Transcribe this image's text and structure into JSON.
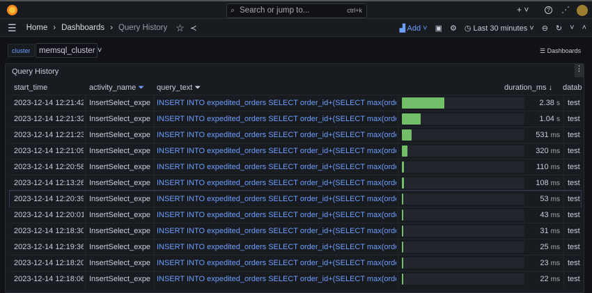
{
  "topbar": {
    "search_placeholder": "Search or jump to...",
    "shortcut": "ctrl+k",
    "plus": "+ ˅",
    "help": "?",
    "news": "⚞"
  },
  "breadcrumb": [
    "Home",
    "Dashboards",
    "Query History"
  ],
  "toolbar": {
    "add": "Add",
    "time_range": "Last 30 minutes"
  },
  "variables": {
    "label": "cluster",
    "value": "memsql_cluster"
  },
  "dashboards_link": "Dashboards",
  "panel": {
    "title": "Query History",
    "columns": [
      "start_time",
      "activity_name",
      "query_text",
      "duration_ms",
      "datab"
    ],
    "duration_max_ms": 6870,
    "rows": [
      {
        "start_time": "2023-12-14 12:21:42",
        "activity_name": "InsertSelect_expe...",
        "query_text": "INSERT INTO expedited_orders SELECT order_id+(SELECT max(order_id) FR...",
        "duration_ms": 2380,
        "duration": "2.38",
        "unit": "s",
        "database": "test"
      },
      {
        "start_time": "2023-12-14 12:21:32",
        "activity_name": "InsertSelect_expe...",
        "query_text": "INSERT INTO expedited_orders SELECT order_id+(SELECT max(order_id) FR...",
        "duration_ms": 1040,
        "duration": "1.04",
        "unit": "s",
        "database": "test"
      },
      {
        "start_time": "2023-12-14 12:21:23",
        "activity_name": "InsertSelect_expe...",
        "query_text": "INSERT INTO expedited_orders SELECT order_id+(SELECT max(order_id) FR...",
        "duration_ms": 531,
        "duration": "531",
        "unit": "ms",
        "database": "test"
      },
      {
        "start_time": "2023-12-14 12:21:09",
        "activity_name": "InsertSelect_expe...",
        "query_text": "INSERT INTO expedited_orders SELECT order_id+(SELECT max(order_id) FR...",
        "duration_ms": 320,
        "duration": "320",
        "unit": "ms",
        "database": "test"
      },
      {
        "start_time": "2023-12-14 12:20:58",
        "activity_name": "InsertSelect_expe...",
        "query_text": "INSERT INTO expedited_orders SELECT order_id+(SELECT max(order_id) FR...",
        "duration_ms": 110,
        "duration": "110",
        "unit": "ms",
        "database": "test"
      },
      {
        "start_time": "2023-12-14 12:13:26",
        "activity_name": "InsertSelect_expe...",
        "query_text": "INSERT INTO expedited_orders SELECT order_id+(SELECT max(order_id) FR...",
        "duration_ms": 108,
        "duration": "108",
        "unit": "ms",
        "database": "test"
      },
      {
        "start_time": "2023-12-14 12:20:39",
        "activity_name": "InsertSelect_expe...",
        "query_text": "INSERT INTO expedited_orders SELECT order_id+(SELECT max(order_id) FR...",
        "duration_ms": 53,
        "duration": "53",
        "unit": "ms",
        "database": "test"
      },
      {
        "start_time": "2023-12-14 12:20:01",
        "activity_name": "InsertSelect_expe...",
        "query_text": "INSERT INTO expedited_orders SELECT order_id+(SELECT max(order_id) FR...",
        "duration_ms": 43,
        "duration": "43",
        "unit": "ms",
        "database": "test"
      },
      {
        "start_time": "2023-12-14 12:18:30",
        "activity_name": "InsertSelect_expe...",
        "query_text": "INSERT INTO expedited_orders SELECT order_id+(SELECT max(order_id) FR...",
        "duration_ms": 31,
        "duration": "31",
        "unit": "ms",
        "database": "test"
      },
      {
        "start_time": "2023-12-14 12:19:36",
        "activity_name": "InsertSelect_expe...",
        "query_text": "INSERT INTO expedited_orders SELECT order_id+(SELECT max(order_id) FR...",
        "duration_ms": 25,
        "duration": "25",
        "unit": "ms",
        "database": "test"
      },
      {
        "start_time": "2023-12-14 12:18:20",
        "activity_name": "InsertSelect_expe...",
        "query_text": "INSERT INTO expedited_orders SELECT order_id+(SELECT max(order_id) FR...",
        "duration_ms": 23,
        "duration": "23",
        "unit": "ms",
        "database": "test"
      },
      {
        "start_time": "2023-12-14 12:18:06",
        "activity_name": "InsertSelect_expe...",
        "query_text": "INSERT INTO expedited_orders SELECT order_id+(SELECT max(order_id) FR...",
        "duration_ms": 22,
        "duration": "22",
        "unit": "ms",
        "database": "test"
      }
    ]
  },
  "colors": {
    "bar": "#73bf69",
    "link": "#6e9fff",
    "accent": "#f58a1f"
  }
}
